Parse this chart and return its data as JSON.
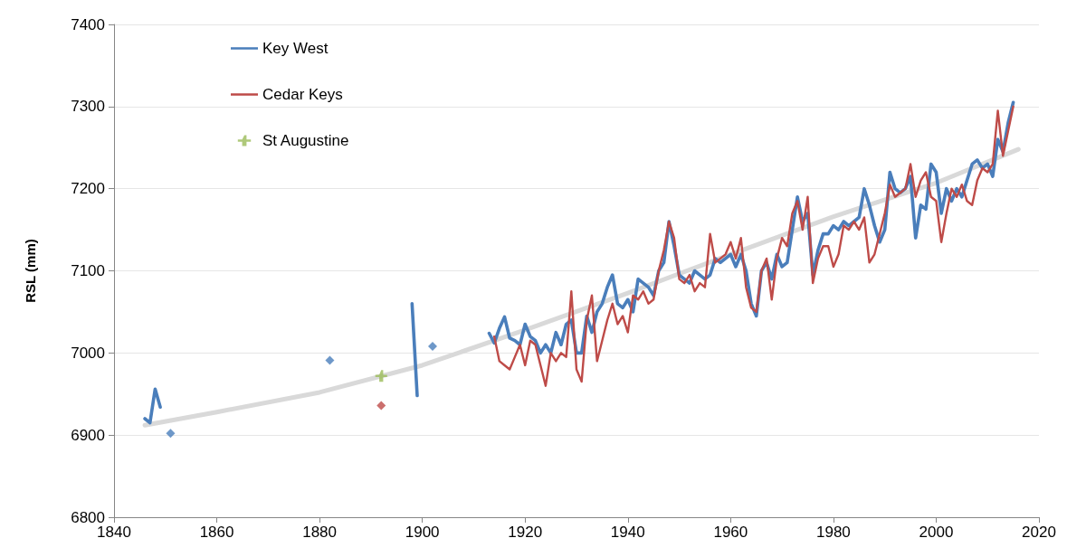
{
  "chart_data": {
    "type": "line",
    "ylabel": "RSL (mm)",
    "xlim": [
      1840,
      2020
    ],
    "xticks": [
      1840,
      1860,
      1880,
      1900,
      1920,
      1940,
      1960,
      1980,
      2000,
      2020
    ],
    "ylim": [
      6800,
      7400
    ],
    "yticks": [
      6800,
      6900,
      7000,
      7100,
      7200,
      7300,
      7400
    ],
    "grid": "y",
    "legend": "top left",
    "series": [
      {
        "color": "#d9d9d9",
        "marker": "none",
        "x": [
          1846,
          1860,
          1880,
          1900,
          1920,
          1940,
          1960,
          1980,
          2000,
          2016
        ],
        "values": [
          6912,
          6928,
          6952,
          6985,
          7028,
          7073,
          7120,
          7166,
          7207,
          7248
        ]
      },
      {
        "name": "Key West",
        "color": "#4a7ebb",
        "marker": "none",
        "x": [
          1846,
          1847,
          1848,
          1849,
          1850,
          1898,
          1899,
          1900,
          1913,
          1914,
          1915,
          1916,
          1917,
          1918,
          1919,
          1920,
          1921,
          1922,
          1923,
          1924,
          1925,
          1926,
          1927,
          1928,
          1929,
          1930,
          1931,
          1932,
          1933,
          1934,
          1935,
          1936,
          1937,
          1938,
          1939,
          1940,
          1941,
          1942,
          1943,
          1944,
          1945,
          1946,
          1947,
          1948,
          1949,
          1950,
          1951,
          1952,
          1953,
          1954,
          1955,
          1956,
          1957,
          1958,
          1959,
          1960,
          1961,
          1962,
          1963,
          1964,
          1965,
          1966,
          1967,
          1968,
          1969,
          1970,
          1971,
          1972,
          1973,
          1974,
          1975,
          1976,
          1977,
          1978,
          1979,
          1980,
          1981,
          1982,
          1983,
          1984,
          1985,
          1986,
          1987,
          1988,
          1989,
          1990,
          1991,
          1992,
          1993,
          1994,
          1995,
          1996,
          1997,
          1998,
          1999,
          2000,
          2001,
          2002,
          2003,
          2004,
          2005,
          2006,
          2007,
          2008,
          2009,
          2010,
          2011,
          2012,
          2013,
          2014,
          2015
        ],
        "values": [
          6920,
          6915,
          6956,
          6934,
          null,
          7060,
          6948,
          null,
          7024,
          7012,
          7030,
          7044,
          7018,
          7015,
          7010,
          7035,
          7020,
          7015,
          7000,
          7010,
          7000,
          7025,
          7010,
          7035,
          7040,
          7000,
          7000,
          7045,
          7025,
          7050,
          7060,
          7080,
          7095,
          7060,
          7055,
          7065,
          7050,
          7090,
          7085,
          7080,
          7070,
          7100,
          7110,
          7160,
          7130,
          7095,
          7090,
          7085,
          7100,
          7095,
          7090,
          7095,
          7115,
          7110,
          7115,
          7120,
          7105,
          7120,
          7100,
          7060,
          7045,
          7100,
          7110,
          7090,
          7120,
          7105,
          7110,
          7150,
          7190,
          7160,
          7170,
          7095,
          7125,
          7145,
          7145,
          7155,
          7150,
          7160,
          7155,
          7160,
          7165,
          7200,
          7180,
          7155,
          7135,
          7150,
          7220,
          7200,
          7195,
          7200,
          7215,
          7140,
          7180,
          7175,
          7230,
          7220,
          7170,
          7200,
          7185,
          7200,
          7190,
          7210,
          7230,
          7235,
          7225,
          7230,
          7215,
          7260,
          7245,
          7280,
          7305
        ]
      },
      {
        "type": "scatter",
        "color": "#4a7ebb",
        "marker": "diamond",
        "x": [
          1851,
          1882,
          1902
        ],
        "values": [
          6902,
          6991,
          7008
        ]
      },
      {
        "name": "Cedar Keys",
        "color": "#be4b48",
        "marker": "none",
        "x": [
          1914,
          1915,
          1916,
          1917,
          1918,
          1919,
          1920,
          1921,
          1922,
          1923,
          1924,
          1925,
          1926,
          1927,
          1928,
          1929,
          1930,
          1931,
          1932,
          1933,
          1934,
          1935,
          1936,
          1937,
          1938,
          1939,
          1940,
          1941,
          1942,
          1943,
          1944,
          1945,
          1946,
          1947,
          1948,
          1949,
          1950,
          1951,
          1952,
          1953,
          1954,
          1955,
          1956,
          1957,
          1958,
          1959,
          1960,
          1961,
          1962,
          1963,
          1964,
          1965,
          1966,
          1967,
          1968,
          1969,
          1970,
          1971,
          1972,
          1973,
          1974,
          1975,
          1976,
          1977,
          1978,
          1979,
          1980,
          1981,
          1982,
          1983,
          1984,
          1985,
          1986,
          1987,
          1988,
          1989,
          1990,
          1991,
          1992,
          1993,
          1994,
          1995,
          1996,
          1997,
          1998,
          1999,
          2000,
          2001,
          2002,
          2003,
          2004,
          2005,
          2006,
          2007,
          2008,
          2009,
          2010,
          2011,
          2012,
          2013,
          2014,
          2015
        ],
        "values": [
          7020,
          6990,
          6985,
          6980,
          6995,
          7010,
          6985,
          7015,
          7010,
          6985,
          6960,
          7000,
          6990,
          7000,
          6995,
          7075,
          6980,
          6965,
          7040,
          7070,
          6990,
          7015,
          7040,
          7060,
          7035,
          7045,
          7025,
          7070,
          7065,
          7075,
          7060,
          7065,
          7100,
          7125,
          7160,
          7140,
          7090,
          7085,
          7095,
          7075,
          7085,
          7080,
          7145,
          7110,
          7115,
          7120,
          7135,
          7115,
          7140,
          7080,
          7055,
          7050,
          7100,
          7115,
          7065,
          7115,
          7140,
          7130,
          7170,
          7185,
          7150,
          7190,
          7085,
          7115,
          7130,
          7130,
          7105,
          7120,
          7155,
          7150,
          7160,
          7150,
          7165,
          7110,
          7120,
          7145,
          7170,
          7205,
          7190,
          7195,
          7200,
          7230,
          7190,
          7210,
          7220,
          7190,
          7185,
          7135,
          7170,
          7200,
          7190,
          7205,
          7185,
          7180,
          7210,
          7225,
          7220,
          7230,
          7295,
          7240,
          7270,
          7300
        ]
      },
      {
        "type": "scatter",
        "color": "#be4b48",
        "marker": "diamond",
        "x": [
          1892
        ],
        "values": [
          6936
        ]
      },
      {
        "name": "St Augustine",
        "type": "scatter",
        "color": "#9bbb59",
        "marker": "cross",
        "x": [
          1892
        ],
        "values": [
          6972
        ]
      }
    ]
  }
}
